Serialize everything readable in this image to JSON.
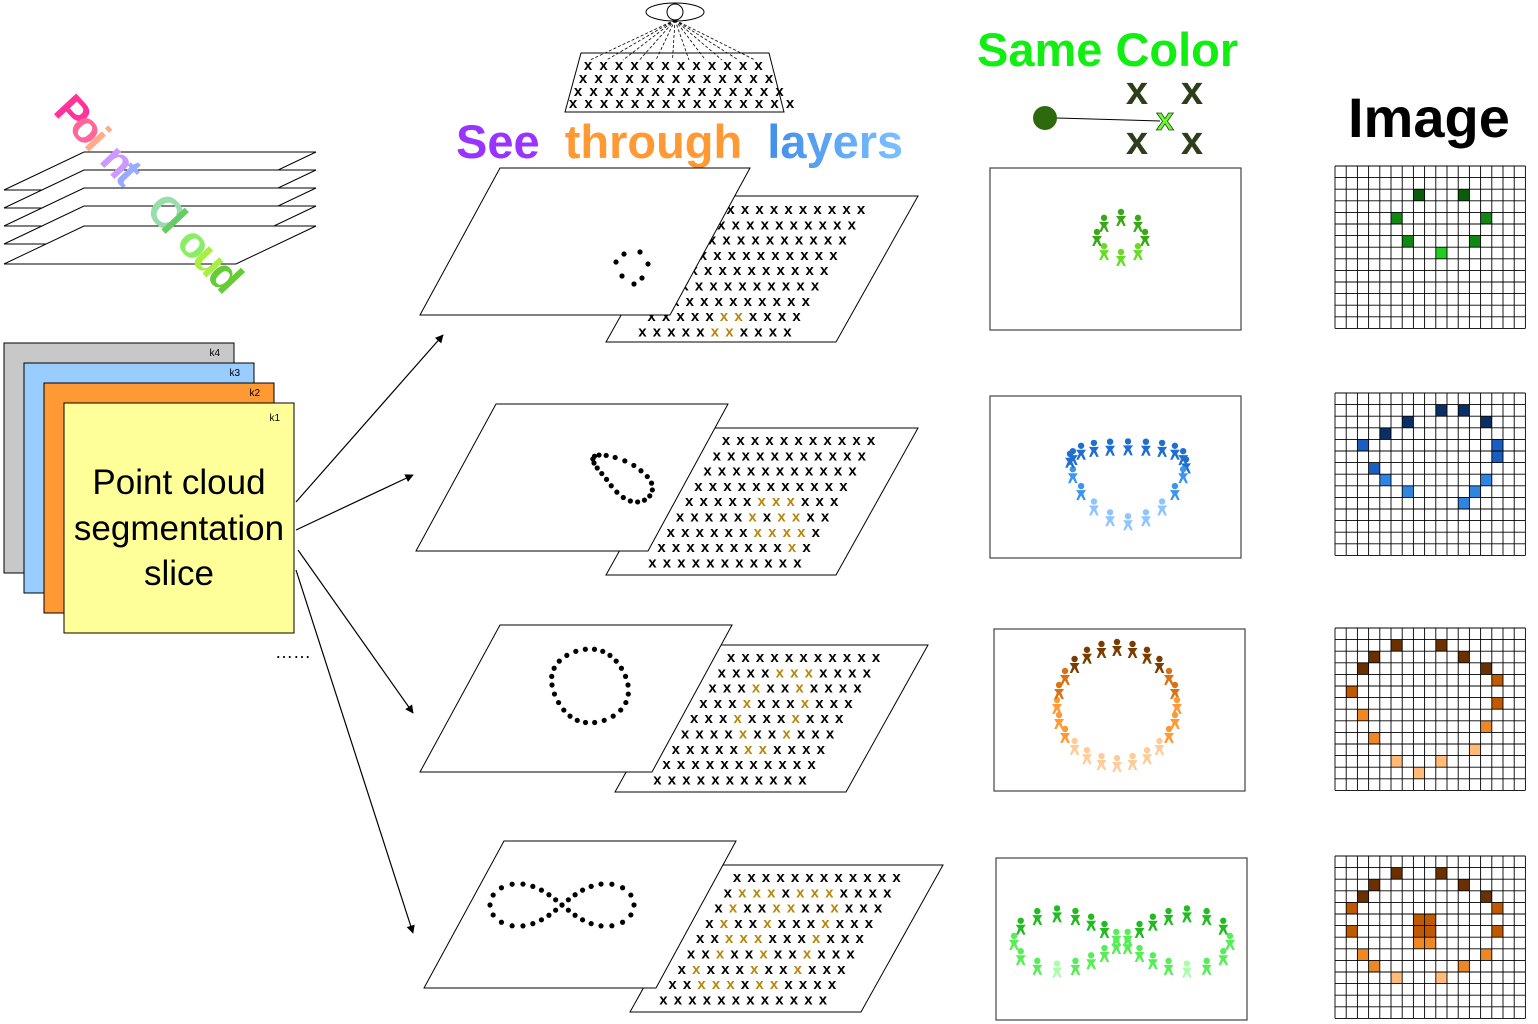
{
  "titles": {
    "point_cloud_letters": [
      "P",
      "o",
      "i",
      "n",
      "t",
      " ",
      "C",
      "l",
      "o",
      "u",
      "d"
    ],
    "see_through": {
      "w1": "See",
      "w2": "through",
      "w3": "layers"
    },
    "same_color": "Same Color",
    "image": "Image"
  },
  "slice_stack": {
    "labels": [
      "k4",
      "k3",
      "k2",
      "k1"
    ],
    "main_text": [
      "Point cloud",
      "segmentation",
      "slice"
    ],
    "more": "……"
  },
  "marker_glyph": "x",
  "colors": {
    "title_gradient": [
      "#ff3399",
      "#ff6699",
      "#ffaa88",
      "#cc99ff",
      "#99aaff",
      "#ff8888",
      "#99ddaa",
      "#66cc66",
      "#88ee66",
      "#aaee44",
      "#66cc33"
    ],
    "see": "#9933ff",
    "through": "#ff9933",
    "layers_a": "#1a4fa0",
    "layers_b": "#4da3ff",
    "same_color": "#11ee11",
    "slice_colors": [
      "#c8c8c8",
      "#99ccff",
      "#ff9933",
      "#ffff99"
    ],
    "highlight_x": "#b8860b",
    "green_dot": "#2d6a0e",
    "green_x": "#2e3d1a",
    "green_x_bright": "#66ff33",
    "row_palettes": [
      [
        "#1a5c0a",
        "#3aa816",
        "#66dd22",
        "#99ee33"
      ],
      [
        "#0a3a7a",
        "#1f6fd0",
        "#3d95ee",
        "#8ec5ff"
      ],
      [
        "#7a3d00",
        "#d97311",
        "#ff9933",
        "#ffcc99"
      ],
      [
        "#0b6a0b",
        "#22bb22",
        "#55ee55",
        "#aaffaa"
      ]
    ],
    "img_palettes": [
      [
        "#0b5c0b",
        "#118811",
        "#22cc22",
        "#44ee44"
      ],
      [
        "#0a2f66",
        "#1a5fbf",
        "#2f86e0",
        "#7ab8ff"
      ],
      [
        "#6b3000",
        "#c05a00",
        "#ee8822",
        "#ffbb77"
      ],
      [
        "#6b3000",
        "#c05a00",
        "#ee8822",
        "#ffbb77"
      ]
    ]
  }
}
